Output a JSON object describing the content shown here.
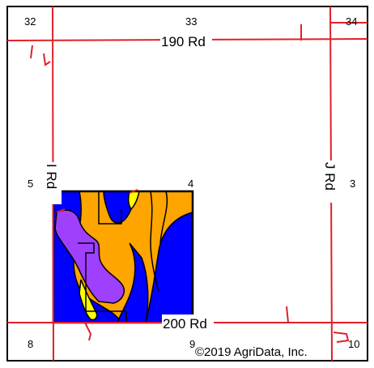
{
  "map": {
    "roads": {
      "north": "190 Rd",
      "south": "200 Rd",
      "west": "I Rd",
      "east": "J Rd"
    },
    "sections": [
      "32",
      "33",
      "34",
      "5",
      "4",
      "3",
      "8",
      "9",
      "10"
    ],
    "copyright": "©2019 AgriData, Inc.",
    "colors": {
      "road": "#e0202a",
      "frame": "#000000",
      "soil_blue": "#0000ff",
      "soil_orange": "#ffa500",
      "soil_purple": "#a040ff",
      "soil_yellow": "#ffff00",
      "background": "#ffffff"
    }
  }
}
